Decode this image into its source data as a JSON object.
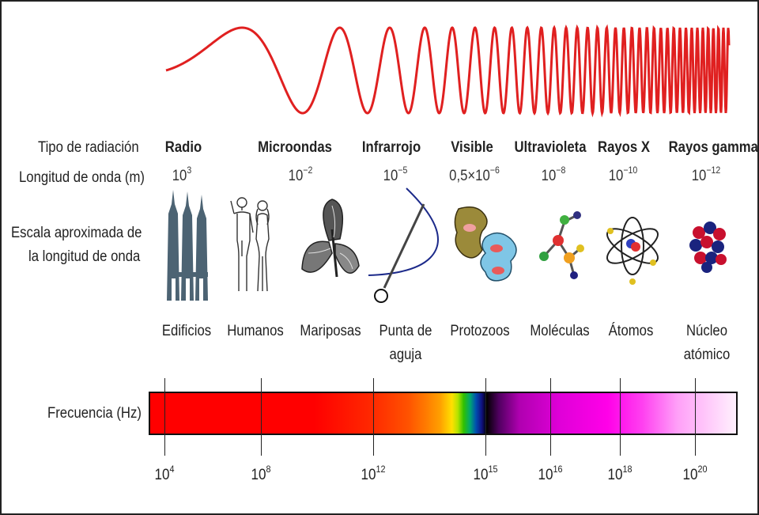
{
  "row_labels": {
    "type": "Tipo de radiación",
    "wavelength": "Longitud de onda (m)",
    "scale_line1": "Escala aproximada de",
    "scale_line2": "la longitud de onda",
    "frequency": "Frecuencia (Hz)"
  },
  "columns": [
    {
      "type": "Radio",
      "wl_base": "10",
      "wl_exp": "3",
      "object_line1": "Edificios",
      "object_line2": "",
      "icon": "buildings-icon"
    },
    {
      "type": "Microondas",
      "wl_base": "10",
      "wl_exp": "−2",
      "object_line1": "Humanos",
      "object_line2": "",
      "icon": "humans-icon"
    },
    {
      "type": "Infrarrojo",
      "wl_base": "10",
      "wl_exp": "−5",
      "object_line1": "Punta de",
      "object_line2": "aguja",
      "icon": "needle-icon"
    },
    {
      "type": "Visible",
      "wl_base": "0,5×10",
      "wl_exp": "−6",
      "object_line1": "Protozoos",
      "object_line2": "",
      "icon": "protozoa-icon"
    },
    {
      "type": "Ultravioleta",
      "wl_base": "10",
      "wl_exp": "−8",
      "object_line1": "Moléculas",
      "object_line2": "",
      "icon": "molecule-icon"
    },
    {
      "type": "Rayos X",
      "wl_base": "10",
      "wl_exp": "−10",
      "object_line1": "Átomos",
      "object_line2": "",
      "icon": "atom-icon"
    },
    {
      "type": "Rayos gamma",
      "wl_base": "10",
      "wl_exp": "−12",
      "object_line1": "Núcleo atómico",
      "object_line2": "",
      "icon": "nucleus-icon"
    }
  ],
  "butterfly_label": "Mariposas",
  "frequency_ticks": [
    {
      "base": "10",
      "exp": "4"
    },
    {
      "base": "10",
      "exp": "8"
    },
    {
      "base": "10",
      "exp": "12"
    },
    {
      "base": "10",
      "exp": "15"
    },
    {
      "base": "10",
      "exp": "16"
    },
    {
      "base": "10",
      "exp": "18"
    },
    {
      "base": "10",
      "exp": "20"
    }
  ],
  "colors": {
    "wave": "#e02020",
    "building": "#4c6373",
    "text": "#222222"
  }
}
